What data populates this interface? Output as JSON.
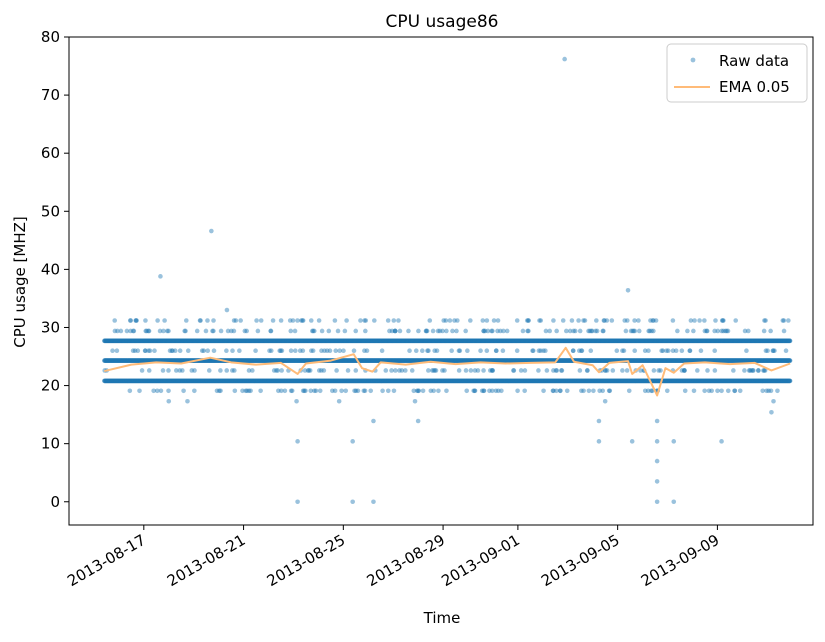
{
  "chart_data": {
    "type": "scatter",
    "title": "CPU usage86",
    "xlabel": "Time",
    "ylabel": "CPU usage [MHZ]",
    "x_range": [
      "2013-08-14T00:00",
      "2013-09-12T20:00"
    ],
    "ylim": [
      -4,
      80
    ],
    "y_ticks": [
      0,
      10,
      20,
      30,
      40,
      50,
      60,
      70,
      80
    ],
    "x_ticks": [
      "2013-08-17",
      "2013-08-21",
      "2013-08-25",
      "2013-08-29",
      "2013-09-01",
      "2013-09-05",
      "2013-09-09"
    ],
    "x_tick_positions": [
      "2013-08-17",
      "2013-08-21",
      "2013-08-25",
      "2013-08-29",
      "2013-09-01",
      "2013-09-05",
      "2013-09-09"
    ],
    "grid": false,
    "legend_position": "top-right",
    "data_start": "2013-08-15T10:00",
    "data_end": "2013-09-11T22:00",
    "baseline_levels": [
      20.8,
      24.3,
      27.7
    ],
    "series": [
      {
        "name": "Raw data",
        "kind": "points",
        "color": "#1f77b4",
        "points": [
          [
            "2013-08-17T16:00",
            38.8
          ],
          [
            "2013-08-19T17:00",
            46.6
          ],
          [
            "2013-08-20T08:00",
            33.0
          ],
          [
            "2013-08-23T04:00",
            10.4
          ],
          [
            "2013-08-23T04:00",
            0.0
          ],
          [
            "2013-08-25T09:00",
            10.4
          ],
          [
            "2013-08-25T09:00",
            0.0
          ],
          [
            "2013-08-26T05:00",
            0.0
          ],
          [
            "2013-08-26T05:00",
            13.9
          ],
          [
            "2013-08-28T00:00",
            13.9
          ],
          [
            "2013-09-02T21:00",
            76.2
          ],
          [
            "2013-09-04T06:00",
            10.4
          ],
          [
            "2013-09-04T06:00",
            13.9
          ],
          [
            "2013-09-05T10:00",
            36.4
          ],
          [
            "2013-09-05T14:00",
            10.4
          ],
          [
            "2013-09-06T14:00",
            7.0
          ],
          [
            "2013-09-06T14:00",
            3.5
          ],
          [
            "2013-09-06T14:00",
            0.0
          ],
          [
            "2013-09-06T14:00",
            10.4
          ],
          [
            "2013-09-06T14:00",
            13.9
          ],
          [
            "2013-09-07T06:00",
            0.0
          ],
          [
            "2013-09-07T06:00",
            10.4
          ],
          [
            "2013-09-09T04:00",
            10.4
          ],
          [
            "2013-09-11T04:00",
            15.4
          ],
          [
            "2013-09-11T06:00",
            17.3
          ],
          [
            "2013-08-18T00:00",
            17.3
          ],
          [
            "2013-08-18T18:00",
            17.3
          ],
          [
            "2013-08-23T03:00",
            17.3
          ],
          [
            "2013-08-24T20:00",
            17.3
          ],
          [
            "2013-08-27T21:00",
            17.3
          ],
          [
            "2013-09-04T12:00",
            17.3
          ]
        ]
      },
      {
        "name": "EMA 0.05",
        "kind": "line",
        "color": "#ffbb78",
        "points": [
          [
            "2013-08-15T10:00",
            22.5
          ],
          [
            "2013-08-16T12:00",
            23.6
          ],
          [
            "2013-08-17T12:00",
            24.0
          ],
          [
            "2013-08-18T12:00",
            23.8
          ],
          [
            "2013-08-19T16:00",
            24.8
          ],
          [
            "2013-08-20T12:00",
            24.0
          ],
          [
            "2013-08-21T12:00",
            23.6
          ],
          [
            "2013-08-22T12:00",
            23.9
          ],
          [
            "2013-08-23T04:00",
            22.0
          ],
          [
            "2013-08-23T12:00",
            23.8
          ],
          [
            "2013-08-24T12:00",
            24.3
          ],
          [
            "2013-08-25T10:00",
            25.4
          ],
          [
            "2013-08-25T18:00",
            23.0
          ],
          [
            "2013-08-26T04:00",
            22.4
          ],
          [
            "2013-08-26T12:00",
            24.0
          ],
          [
            "2013-08-27T12:00",
            23.6
          ],
          [
            "2013-08-28T12:00",
            24.1
          ],
          [
            "2013-08-29T12:00",
            23.7
          ],
          [
            "2013-08-30T12:00",
            24.0
          ],
          [
            "2013-08-31T12:00",
            23.8
          ],
          [
            "2013-09-01T12:00",
            23.9
          ],
          [
            "2013-09-02T12:00",
            24.0
          ],
          [
            "2013-09-02T22:00",
            26.5
          ],
          [
            "2013-09-03T06:00",
            24.1
          ],
          [
            "2013-09-04T00:00",
            23.5
          ],
          [
            "2013-09-04T06:00",
            22.3
          ],
          [
            "2013-09-04T16:00",
            23.9
          ],
          [
            "2013-09-05T10:00",
            24.2
          ],
          [
            "2013-09-05T14:00",
            22.0
          ],
          [
            "2013-09-06T00:00",
            23.5
          ],
          [
            "2013-09-06T14:00",
            18.3
          ],
          [
            "2013-09-06T22:00",
            23.0
          ],
          [
            "2013-09-07T06:00",
            22.2
          ],
          [
            "2013-09-07T16:00",
            23.8
          ],
          [
            "2013-09-08T12:00",
            24.0
          ],
          [
            "2013-09-09T12:00",
            23.7
          ],
          [
            "2013-09-10T12:00",
            23.9
          ],
          [
            "2013-09-11T04:00",
            22.6
          ],
          [
            "2013-09-11T22:00",
            23.8
          ]
        ]
      }
    ]
  }
}
